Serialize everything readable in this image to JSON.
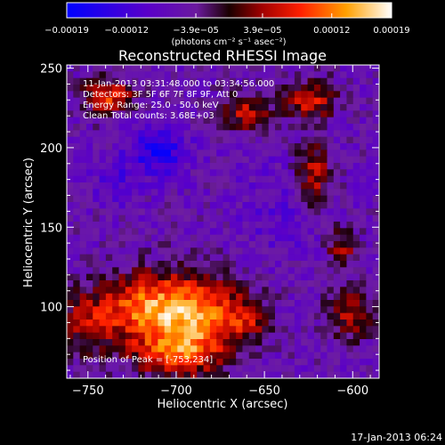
{
  "chart_data": {
    "type": "heatmap",
    "title": "Reconstructed RHESSI Image",
    "xlabel": "Heliocentric X (arcsec)",
    "ylabel": "Heliocentric Y (arcsec)",
    "xlim": [
      -762,
      -585
    ],
    "ylim": [
      55,
      252
    ],
    "x_ticks": [
      -750,
      -700,
      -650,
      -600
    ],
    "x_tick_labels": [
      "−750",
      "−700",
      "−650",
      "−600"
    ],
    "y_ticks": [
      100,
      150,
      200,
      250
    ],
    "y_tick_labels": [
      "100",
      "150",
      "200",
      "250"
    ],
    "colorbar": {
      "range": [
        -0.00019,
        0.00019
      ],
      "ticks": [
        -0.00019,
        -0.00012,
        -3.9e-05,
        3.9e-05,
        0.00012,
        0.00019
      ],
      "tick_labels": [
        "−0.00019",
        "−0.00012",
        "−3.9e−05",
        "3.9e−05",
        "0.00012",
        "0.00019"
      ],
      "unit_label": "(photons cm⁻² s⁻¹ asec⁻²)"
    },
    "annotations": [
      "11-Jan-2013 03:31:48.000 to 03:34:56.000",
      "Detectors: 3F 5F 6F 7F 8F 9F, Att 0",
      "Energy Range: 25.0 - 50.0 keV",
      "Clean    Total counts: 3.68E+03"
    ],
    "peak_label": "Position of Peak = [-753,234]",
    "peak_position": [
      -753,
      234
    ],
    "blobs": [
      {
        "x": -690,
        "y": 95,
        "sx": 20,
        "sy": 18,
        "amp": 0.00018
      },
      {
        "x": -720,
        "y": 100,
        "sx": 16,
        "sy": 14,
        "amp": 0.00013
      },
      {
        "x": -750,
        "y": 90,
        "sx": 12,
        "sy": 14,
        "amp": 0.0001
      },
      {
        "x": -700,
        "y": 70,
        "sx": 18,
        "sy": 10,
        "amp": 0.00012
      },
      {
        "x": -738,
        "y": 232,
        "sx": 10,
        "sy": 8,
        "amp": 0.00014
      },
      {
        "x": -660,
        "y": 222,
        "sx": 10,
        "sy": 8,
        "amp": 0.00011
      },
      {
        "x": -622,
        "y": 182,
        "sx": 7,
        "sy": 14,
        "amp": 0.00012
      },
      {
        "x": -624,
        "y": 230,
        "sx": 10,
        "sy": 9,
        "amp": 0.00012
      },
      {
        "x": -606,
        "y": 138,
        "sx": 6,
        "sy": 8,
        "amp": 0.0001
      },
      {
        "x": -602,
        "y": 95,
        "sx": 10,
        "sy": 12,
        "amp": 9e-05
      },
      {
        "x": -660,
        "y": 92,
        "sx": 8,
        "sy": 8,
        "amp": 8e-05
      },
      {
        "x": -710,
        "y": 198,
        "sx": 11,
        "sy": 11,
        "amp": -0.0001
      },
      {
        "x": -735,
        "y": 180,
        "sx": 8,
        "sy": 10,
        "amp": -5e-05
      },
      {
        "x": -640,
        "y": 160,
        "sx": 18,
        "sy": 20,
        "amp": -3e-05
      }
    ]
  },
  "footer": {
    "date": "17-Jan-2013 06:24"
  }
}
